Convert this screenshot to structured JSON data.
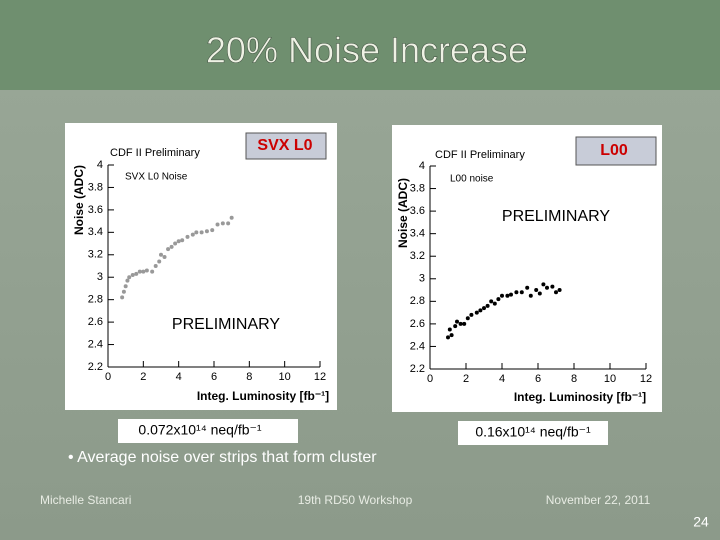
{
  "slide": {
    "title": "20% Noise Increase",
    "bullet": "• Average noise over strips that form cluster",
    "author": "Michelle Stancari",
    "event": "19th  RD50  Workshop",
    "date": "November 22, 2011",
    "page": "24"
  },
  "chart_data": [
    {
      "type": "scatter",
      "title": "CDF II Preliminary",
      "legend": "SVX L0 Noise",
      "label": "SVX  L0",
      "watermark": "PRELIMINARY",
      "rate": "0.072x10¹⁴ neq/fb⁻¹",
      "x_label": "Integ. Luminosity [fb⁻¹]",
      "y_label": "Noise (ADC)",
      "color": "#999999",
      "xlim": [
        0,
        12
      ],
      "xticks": [
        0,
        2,
        4,
        6,
        8,
        10,
        12
      ],
      "ylim": [
        2.2,
        4
      ],
      "yticks": [
        2.2,
        2.4,
        2.6,
        2.8,
        3,
        3.2,
        3.4,
        3.6,
        3.8,
        4
      ],
      "x": [
        0.8,
        0.9,
        1.0,
        1.1,
        1.2,
        1.4,
        1.6,
        1.8,
        2.0,
        2.2,
        2.5,
        2.7,
        2.9,
        3.0,
        3.2,
        3.4,
        3.6,
        3.8,
        4.0,
        4.2,
        4.5,
        4.8,
        5.0,
        5.3,
        5.6,
        5.9,
        6.2,
        6.5,
        6.8,
        7.0
      ],
      "values": [
        2.82,
        2.87,
        2.92,
        2.97,
        3.0,
        3.02,
        3.03,
        3.05,
        3.05,
        3.06,
        3.05,
        3.1,
        3.14,
        3.2,
        3.18,
        3.25,
        3.27,
        3.3,
        3.32,
        3.33,
        3.36,
        3.38,
        3.4,
        3.4,
        3.41,
        3.42,
        3.47,
        3.48,
        3.48,
        3.53
      ]
    },
    {
      "type": "scatter",
      "title": "CDF II Preliminary",
      "legend": "L00 noise",
      "label": "L00",
      "watermark": "PRELIMINARY",
      "rate": "0.16x10¹⁴ neq/fb⁻¹",
      "x_label": "Integ. Luminosity [fb⁻¹]",
      "y_label": "Noise (ADC)",
      "color": "#000000",
      "xlim": [
        0,
        12
      ],
      "xticks": [
        0,
        2,
        4,
        6,
        8,
        10,
        12
      ],
      "ylim": [
        2.2,
        4
      ],
      "yticks": [
        2.2,
        2.4,
        2.6,
        2.8,
        3,
        3.2,
        3.4,
        3.6,
        3.8,
        4
      ],
      "x": [
        1.0,
        1.1,
        1.2,
        1.4,
        1.5,
        1.7,
        1.9,
        2.1,
        2.3,
        2.6,
        2.8,
        3.0,
        3.2,
        3.4,
        3.6,
        3.8,
        4.0,
        4.3,
        4.5,
        4.8,
        5.1,
        5.4,
        5.6,
        5.9,
        6.1,
        6.3,
        6.5,
        6.8,
        7.0,
        7.2
      ],
      "values": [
        2.48,
        2.55,
        2.5,
        2.58,
        2.62,
        2.6,
        2.6,
        2.65,
        2.68,
        2.7,
        2.72,
        2.74,
        2.76,
        2.8,
        2.78,
        2.82,
        2.85,
        2.85,
        2.86,
        2.88,
        2.88,
        2.92,
        2.85,
        2.9,
        2.87,
        2.95,
        2.92,
        2.93,
        2.88,
        2.9
      ]
    }
  ]
}
